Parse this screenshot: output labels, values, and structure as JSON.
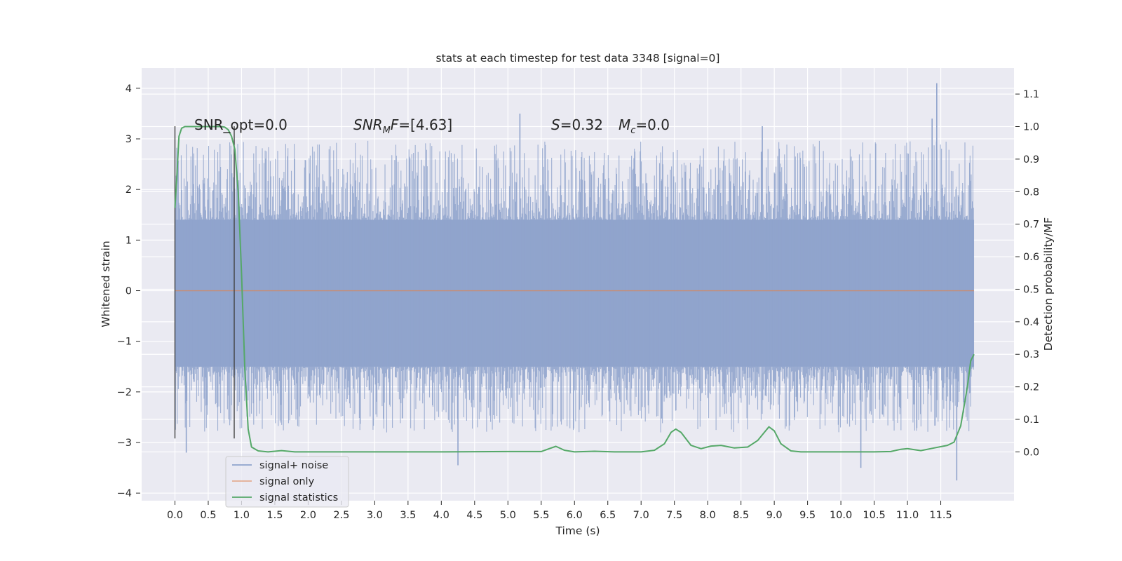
{
  "chart_data": {
    "type": "line",
    "title": "stats at each timestep for test data 3348 [signal=0]",
    "xlabel": "Time (s)",
    "ylabel": "Whitened strain",
    "y2label": "Detection probability/MF",
    "xlim": [
      -0.5,
      12.6
    ],
    "ylim": [
      -4.15,
      4.4
    ],
    "y2lim": [
      -0.15,
      1.18
    ],
    "xticks": [
      0.0,
      0.5,
      1.0,
      1.5,
      2.0,
      2.5,
      3.0,
      3.5,
      4.0,
      4.5,
      5.0,
      5.5,
      6.0,
      6.5,
      7.0,
      7.5,
      8.0,
      8.5,
      9.0,
      9.5,
      10.0,
      10.5,
      11.0,
      11.5
    ],
    "xtick_labels": [
      "0.0",
      "0.5",
      "1.0",
      "1.5",
      "2.0",
      "2.5",
      "3.0",
      "3.5",
      "4.0",
      "4.5",
      "5.0",
      "5.5",
      "6.0",
      "6.5",
      "7.0",
      "7.5",
      "8.0",
      "8.5",
      "9.0",
      "9.5",
      "10.0",
      "10.5",
      "11.0",
      "11.5"
    ],
    "yticks": [
      -4,
      -3,
      -2,
      -1,
      0,
      1,
      2,
      3,
      4
    ],
    "ytick_labels": [
      "−4",
      "−3",
      "−2",
      "−1",
      "0",
      "1",
      "2",
      "3",
      "4"
    ],
    "y2ticks": [
      0.0,
      0.1,
      0.2,
      0.3,
      0.4,
      0.5,
      0.6,
      0.7,
      0.8,
      0.9,
      1.0,
      1.1
    ],
    "y2tick_labels": [
      "0.0",
      "0.1",
      "0.2",
      "0.3",
      "0.4",
      "0.5",
      "0.6",
      "0.7",
      "0.8",
      "0.9",
      "1.0",
      "1.1"
    ],
    "grid": true,
    "legend_position": "lower-left",
    "annotations": {
      "snr_opt": "SNR_opt=0.0",
      "snr_mf_sym": "SNR",
      "snr_mf_sub": "M",
      "snr_mf_f": "F",
      "snr_mf_val": "=[4.63]",
      "s_sym": "S",
      "s_val": "=0.32",
      "mc_sym": "M",
      "mc_sub": "c",
      "mc_val": "=0.0"
    },
    "vlines": [
      {
        "x": 0.0,
        "ymin": -2.92,
        "ymax": 3.25
      },
      {
        "x": 0.89,
        "ymin": -2.92,
        "ymax": 3.25
      }
    ],
    "series": [
      {
        "name": "signal+ noise",
        "color": "#8fa3cc",
        "axis": "left",
        "x_range": [
          0.0,
          12.0
        ],
        "core_band": [
          -1.5,
          1.4
        ],
        "max_peak": 4.1,
        "min_peak": -3.75,
        "notable_peaks": [
          {
            "x": 11.44,
            "y": 4.1
          },
          {
            "x": 11.37,
            "y": 3.4
          },
          {
            "x": 8.82,
            "y": 3.25
          },
          {
            "x": 5.18,
            "y": 3.5
          },
          {
            "x": 11.74,
            "y": -3.75
          },
          {
            "x": 4.25,
            "y": -3.45
          },
          {
            "x": 10.3,
            "y": -3.5
          },
          {
            "x": 0.17,
            "y": -3.2
          }
        ]
      },
      {
        "name": "signal only",
        "color": "#dd8452",
        "axis": "left",
        "x": [
          0.0,
          12.0
        ],
        "y": [
          0.0,
          0.0
        ]
      },
      {
        "name": "signal statistics",
        "color": "#55a868",
        "axis": "right",
        "x": [
          0.0,
          0.03,
          0.06,
          0.1,
          0.15,
          0.2,
          0.3,
          0.4,
          0.5,
          0.6,
          0.65,
          0.7,
          0.75,
          0.8,
          0.85,
          0.9,
          0.95,
          1.0,
          1.05,
          1.1,
          1.15,
          1.25,
          1.4,
          1.6,
          1.8,
          2.5,
          4.0,
          5.0,
          5.5,
          5.62,
          5.72,
          5.85,
          6.0,
          6.3,
          6.6,
          7.0,
          7.2,
          7.35,
          7.45,
          7.52,
          7.6,
          7.75,
          7.9,
          8.05,
          8.2,
          8.4,
          8.6,
          8.75,
          8.85,
          8.92,
          9.0,
          9.1,
          9.25,
          9.4,
          9.6,
          10.0,
          10.5,
          10.75,
          10.9,
          11.0,
          11.2,
          11.4,
          11.6,
          11.7,
          11.8,
          11.9,
          11.95,
          12.0
        ],
        "y": [
          0.75,
          0.85,
          0.97,
          0.995,
          1.0,
          1.0,
          1.0,
          1.0,
          1.0,
          1.0,
          1.0,
          1.0,
          0.998,
          0.99,
          0.97,
          0.93,
          0.8,
          0.55,
          0.25,
          0.07,
          0.015,
          0.003,
          0.0,
          0.004,
          0.0,
          0.0,
          0.0,
          0.001,
          0.001,
          0.01,
          0.017,
          0.005,
          0.0,
          0.002,
          0.0,
          0.0,
          0.005,
          0.025,
          0.06,
          0.07,
          0.06,
          0.02,
          0.01,
          0.018,
          0.02,
          0.012,
          0.015,
          0.035,
          0.06,
          0.077,
          0.065,
          0.025,
          0.003,
          0.0,
          0.0,
          0.0,
          0.0,
          0.001,
          0.008,
          0.01,
          0.004,
          0.012,
          0.02,
          0.03,
          0.08,
          0.2,
          0.28,
          0.3
        ]
      }
    ]
  }
}
